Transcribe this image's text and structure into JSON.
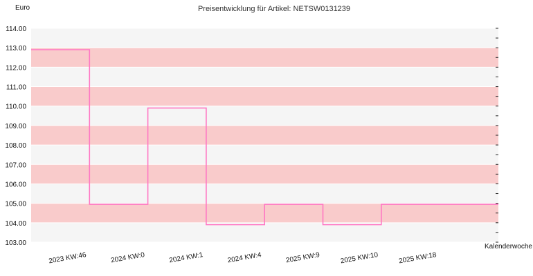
{
  "chart_data": {
    "type": "line",
    "step": true,
    "title": "Preisentwicklung für Artikel: NETSW0131239",
    "ylabel": "Euro",
    "xlabel": "Kalenderwoche",
    "ylim": [
      103,
      114
    ],
    "yticks": [
      "103.00",
      "104.00",
      "105.00",
      "106.00",
      "107.00",
      "108.00",
      "109.00",
      "110.00",
      "111.00",
      "112.00",
      "113.00",
      "114.00"
    ],
    "categories": [
      "2023 KW:46",
      "2024 KW:0",
      "2024 KW:1",
      "2024 KW:4",
      "2025 KW:9",
      "2025 KW:10",
      "2025 KW:18"
    ],
    "series": [
      {
        "values": [
          112.9,
          104.95,
          109.9,
          103.9,
          104.95,
          103.9,
          104.95
        ]
      }
    ],
    "colors": {
      "line": "#ff77c4",
      "band_pink": "#f9cbcb",
      "band_light": "#f5f5f5",
      "grid": "#ffffff"
    },
    "grid": true
  }
}
